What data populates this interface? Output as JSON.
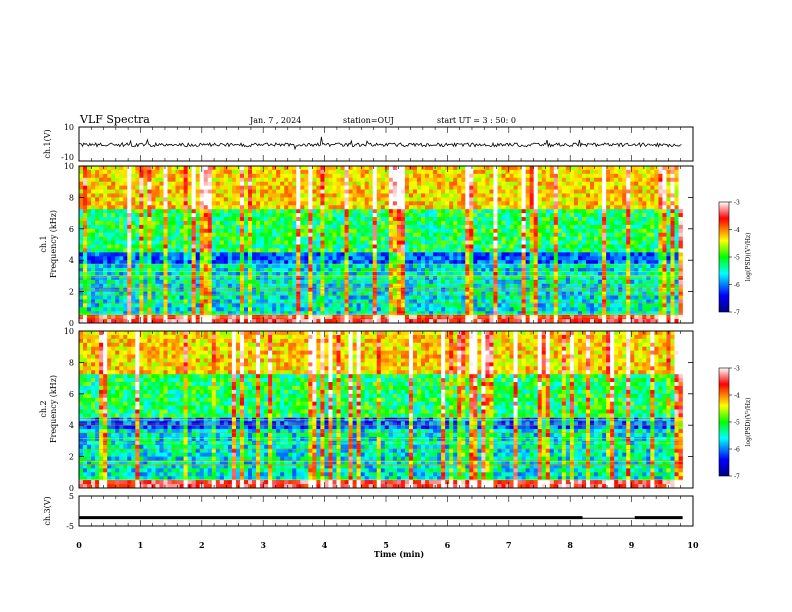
{
  "header": {
    "title": "VLF Spectra",
    "date": "Jan. 7 , 2024",
    "station": "station=OUJ",
    "start": "start UT = 3 : 50: 0"
  },
  "chart_data": [
    {
      "type": "line",
      "panel": "ch1-waveform",
      "ylabel": "ch.1(V)",
      "ylim": [
        -10,
        10
      ],
      "yticks": [
        "10",
        "-10"
      ],
      "xlim": [
        0,
        10
      ],
      "baseline": -0.5
    },
    {
      "type": "heatmap",
      "panel": "ch1-spectrogram",
      "ylabel_line1": "ch.1",
      "ylabel_line2": "Frequency (kHz)",
      "ylim": [
        0,
        10
      ],
      "yticks": [
        "0",
        "2",
        "4",
        "6",
        "8",
        "10"
      ],
      "xlim": [
        0,
        10
      ],
      "data_end_min": 9.83,
      "colorbar": {
        "label": "log(PSD)(V²/Hz)",
        "range": [
          -7,
          -3
        ],
        "ticks": [
          "-3",
          "-4",
          "-5",
          "-6",
          "-7"
        ],
        "colors": [
          "#000080",
          "#0000ff",
          "#00ffff",
          "#00ff00",
          "#ffff00",
          "#ff0000",
          "#ffffff"
        ]
      }
    },
    {
      "type": "heatmap",
      "panel": "ch2-spectrogram",
      "ylabel_line1": "ch.2",
      "ylabel_line2": "Frequency (kHz)",
      "ylim": [
        0,
        10
      ],
      "yticks": [
        "0",
        "2",
        "4",
        "6",
        "8",
        "10"
      ],
      "xlim": [
        0,
        10
      ],
      "data_end_min": 9.83,
      "colorbar": {
        "label": "log(PSD)(V²/Hz)",
        "range": [
          -7,
          -3
        ],
        "ticks": [
          "-3",
          "-4",
          "-5",
          "-6",
          "-7"
        ],
        "colors": [
          "#000080",
          "#0000ff",
          "#00ffff",
          "#00ff00",
          "#ffff00",
          "#ff0000",
          "#ffffff"
        ]
      }
    },
    {
      "type": "line",
      "panel": "ch3-waveform",
      "ylabel": "ch.3(V)",
      "ylim": [
        -5,
        5
      ],
      "yticks": [
        "5",
        "-5"
      ],
      "xlim": [
        0,
        10
      ],
      "baseline": -2.2,
      "segments": [
        [
          0,
          8.2,
          -2.2
        ],
        [
          8.2,
          9.05,
          -2.4
        ],
        [
          9.05,
          9.83,
          -2.2
        ]
      ]
    }
  ],
  "xaxis": {
    "label": "Time (min)",
    "ticks": [
      "0",
      "1",
      "2",
      "3",
      "4",
      "5",
      "6",
      "7",
      "8",
      "9",
      "10"
    ]
  }
}
